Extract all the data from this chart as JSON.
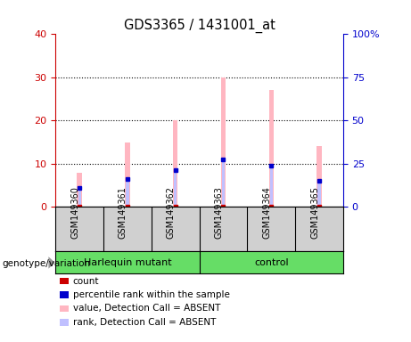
{
  "title": "GDS3365 / 1431001_at",
  "samples": [
    "GSM149360",
    "GSM149361",
    "GSM149362",
    "GSM149363",
    "GSM149364",
    "GSM149365"
  ],
  "group_labels": [
    "Harlequin mutant",
    "control"
  ],
  "absent_value_heights": [
    8,
    15,
    20,
    30,
    27,
    14
  ],
  "absent_rank_heights": [
    4.5,
    6.5,
    8.5,
    11,
    9.5,
    6
  ],
  "percentile_rank_values": [
    4.5,
    6.5,
    8.5,
    11,
    9.5,
    6
  ],
  "ylim_left": [
    0,
    40
  ],
  "ylim_right": [
    0,
    100
  ],
  "yticks_left": [
    0,
    10,
    20,
    30,
    40
  ],
  "ytick_labels_right": [
    "0",
    "25",
    "50",
    "75",
    "100%"
  ],
  "color_absent_value": "#FFB6C1",
  "color_absent_rank": "#C0C0FF",
  "color_count": "#CC0000",
  "color_percentile": "#0000CC",
  "left_tick_color": "#CC0000",
  "right_tick_color": "#0000CC",
  "bg_color": "#D0D0D0",
  "green_color": "#66DD66",
  "legend_items": [
    {
      "label": "count",
      "color": "#CC0000"
    },
    {
      "label": "percentile rank within the sample",
      "color": "#0000CC"
    },
    {
      "label": "value, Detection Call = ABSENT",
      "color": "#FFB6C1"
    },
    {
      "label": "rank, Detection Call = ABSENT",
      "color": "#C0C0FF"
    }
  ]
}
